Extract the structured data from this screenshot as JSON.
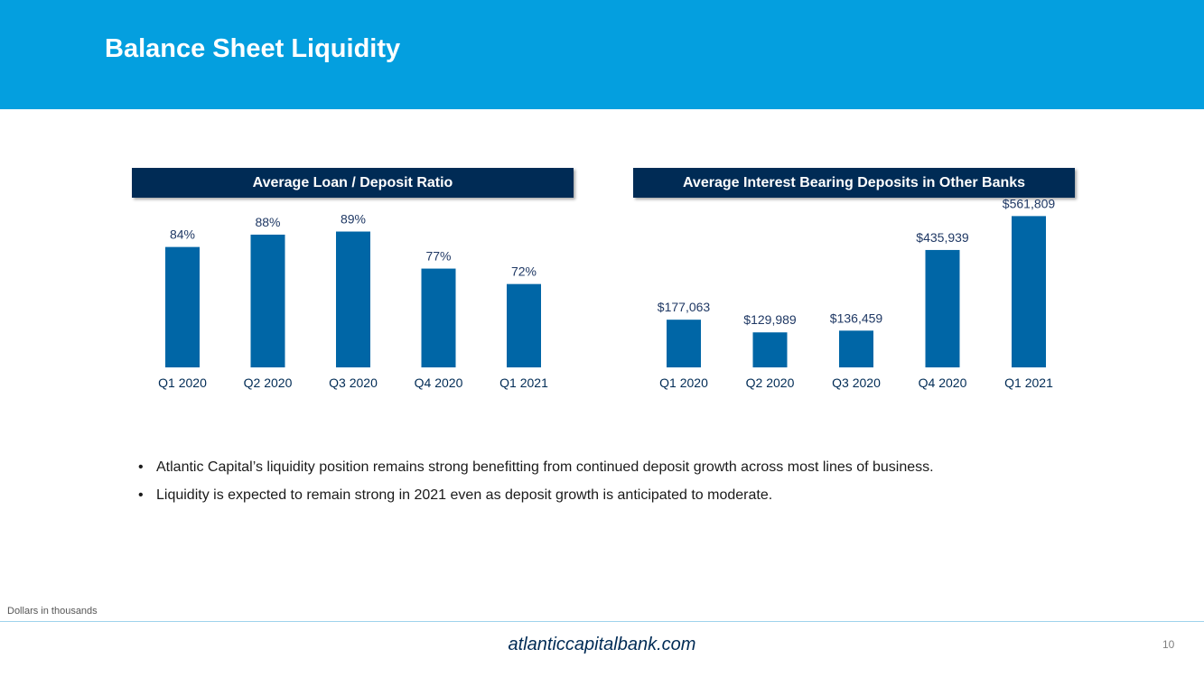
{
  "page": {
    "title": "Balance Sheet Liquidity",
    "footnote": "Dollars in thousands",
    "website": "atlanticcapitalbank.com",
    "page_number": "10"
  },
  "colors": {
    "header": "#049fdf",
    "chart_title_bg": "#002b55",
    "bar": "#0066a6",
    "label": "#1f3864",
    "axis_text": "#002b55",
    "footer_line": "#9fd3ec",
    "website": "#002b55"
  },
  "bullets": [
    "Atlantic Capital’s liquidity position remains strong benefitting from continued deposit growth across most lines of business.",
    "Liquidity is expected to remain strong in 2021 even as deposit growth is anticipated to moderate."
  ],
  "chart_data": [
    {
      "type": "bar",
      "title": "Average Loan / Deposit Ratio",
      "categories": [
        "Q1 2020",
        "Q2 2020",
        "Q3 2020",
        "Q4 2020",
        "Q1 2021"
      ],
      "values": [
        84,
        88,
        89,
        77,
        72
      ],
      "value_labels": [
        "84%",
        "88%",
        "89%",
        "77%",
        "72%"
      ],
      "unit": "%",
      "ylim": [
        45,
        95
      ],
      "xlabel": "",
      "ylabel": ""
    },
    {
      "type": "bar",
      "title": "Average Interest Bearing Deposits in Other Banks",
      "categories": [
        "Q1 2020",
        "Q2 2020",
        "Q3 2020",
        "Q4 2020",
        "Q1 2021"
      ],
      "values": [
        177063,
        129989,
        136459,
        435939,
        561809
      ],
      "value_labels": [
        "$177,063",
        "$129,989",
        "$136,459",
        "$435,939",
        "$561,809"
      ],
      "unit": "$ thousands",
      "ylim": [
        0,
        600000
      ],
      "xlabel": "",
      "ylabel": ""
    }
  ]
}
